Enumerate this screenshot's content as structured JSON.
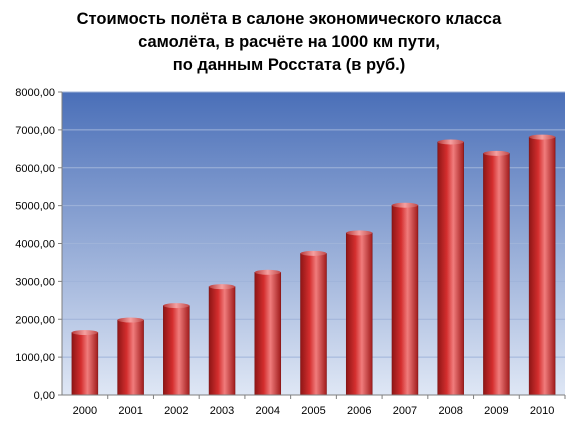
{
  "chart_data": {
    "type": "bar",
    "title_lines": [
      "Стоимость полёта в салоне экономического класса",
      "самолёта, в расчёте на 1000 км пути,",
      "по данным Росстата (в руб.)"
    ],
    "xlabel": "",
    "ylabel": "",
    "categories": [
      "2000",
      "2001",
      "2002",
      "2003",
      "2004",
      "2005",
      "2006",
      "2007",
      "2008",
      "2009",
      "2010"
    ],
    "values": [
      1650,
      1980,
      2360,
      2860,
      3240,
      3740,
      4280,
      5010,
      6680,
      6380,
      6810
    ],
    "ylim": [
      0,
      8000
    ],
    "y_ticks": [
      0,
      1000,
      2000,
      3000,
      4000,
      5000,
      6000,
      7000,
      8000
    ],
    "y_tick_labels": [
      "0,00",
      "1000,00",
      "2000,00",
      "3000,00",
      "4000,00",
      "5000,00",
      "6000,00",
      "7000,00",
      "8000,00"
    ],
    "grid": true,
    "legend": "none",
    "colors": {
      "bar_dark": "#8e1616",
      "bar_mid": "#d42e2e",
      "bar_light": "#f07c7c",
      "plot_bg_top": "#4a6fb8",
      "plot_bg_bottom": "#dfe7f5",
      "axis": "#7f7f7f"
    }
  }
}
